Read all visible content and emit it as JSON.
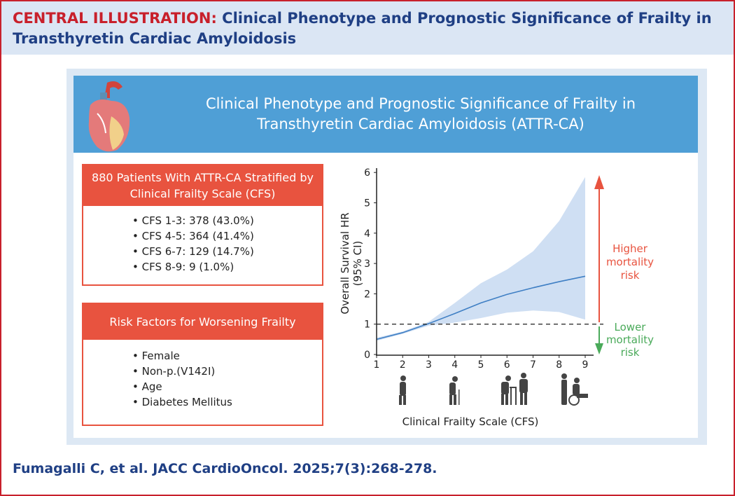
{
  "header": {
    "lead": "CENTRAL ILLUSTRATION:",
    "title": "Clinical Phenotype and Prognostic Significance of Frailty in Transthyretin Cardiac Amyloidosis"
  },
  "banner": {
    "line1": "Clinical Phenotype and Prognostic Significance of Frailty in",
    "line2": "Transthyretin Cardiac Amyloidosis (ATTR-CA)"
  },
  "box1": {
    "title": "880 Patients With ATTR-CA Stratified by Clinical Frailty Scale (CFS)",
    "items": [
      "CFS 1-3: 378 (43.0%)",
      "CFS 4-5: 364 (41.4%)",
      "CFS 6-7: 129 (14.7%)",
      "CFS 8-9: 9 (1.0%)"
    ]
  },
  "box2": {
    "title": "Risk Factors for Worsening Frailty",
    "items": [
      "Female",
      "Non-p.(V142I)",
      "Age",
      "Diabetes Mellitus"
    ]
  },
  "chart_data": {
    "type": "line",
    "xlabel": "Clinical Frailty Scale (CFS)",
    "ylabel_line1": "Overall Survival HR",
    "ylabel_line2": "(95% CI)",
    "xlim": [
      1,
      9
    ],
    "ylim": [
      0,
      6
    ],
    "xticks": [
      "1",
      "2",
      "3",
      "4",
      "5",
      "6",
      "7",
      "8",
      "9"
    ],
    "yticks": [
      "0",
      "1",
      "2",
      "3",
      "4",
      "5",
      "6"
    ],
    "reference_line": 1,
    "x": [
      1,
      2,
      3,
      4,
      5,
      6,
      7,
      8,
      9
    ],
    "series": [
      {
        "name": "HR",
        "values": [
          0.5,
          0.72,
          1.02,
          1.35,
          1.7,
          1.98,
          2.2,
          2.4,
          2.58
        ]
      }
    ],
    "ci_lower": [
      0.45,
      0.68,
      0.95,
      1.05,
      1.2,
      1.38,
      1.45,
      1.4,
      1.15
    ],
    "ci_upper": [
      0.55,
      0.76,
      1.08,
      1.7,
      2.35,
      2.8,
      3.4,
      4.4,
      5.85
    ],
    "annotations": {
      "higher": [
        "Higher",
        "mortality",
        "risk"
      ],
      "lower": [
        "Lower",
        "mortality",
        "risk"
      ]
    },
    "colors": {
      "line": "#3f7fc4",
      "band": "#cfdff3",
      "higher": "#e8533f",
      "lower": "#4aaa5a"
    }
  },
  "citation": "Fumagalli C, et al. JACC CardioOncol. 2025;7(3):268-278."
}
